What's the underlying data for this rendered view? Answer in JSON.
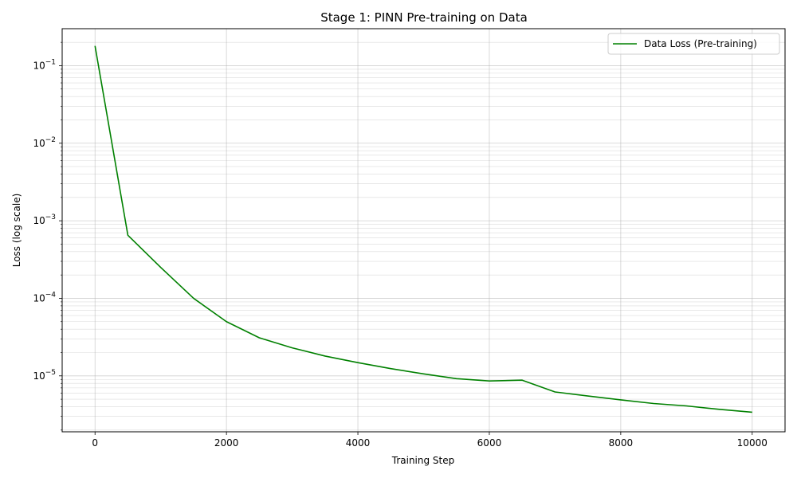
{
  "chart_data": {
    "type": "line",
    "title": "Stage 1: PINN Pre-training on Data",
    "xlabel": "Training Step",
    "ylabel": "Loss (log scale)",
    "yscale": "log",
    "xlim": [
      -500,
      10500
    ],
    "ylim": [
      1.9e-06,
      0.3
    ],
    "grid": "on (major and minor)",
    "legend_position": "top-right",
    "x_ticks": [
      0,
      2000,
      4000,
      6000,
      8000,
      10000
    ],
    "y_ticks": [
      {
        "value": 1e-05,
        "base": "10",
        "exp": "−5"
      },
      {
        "value": 0.0001,
        "base": "10",
        "exp": "−4"
      },
      {
        "value": 0.001,
        "base": "10",
        "exp": "−3"
      },
      {
        "value": 0.01,
        "base": "10",
        "exp": "−2"
      },
      {
        "value": 0.1,
        "base": "10",
        "exp": "−1"
      }
    ],
    "series": [
      {
        "name": "Data Loss (Pre-training)",
        "color": "#008000",
        "x": [
          0,
          500,
          1000,
          1500,
          2000,
          2500,
          3000,
          3500,
          4000,
          4500,
          5000,
          5500,
          6000,
          6500,
          7000,
          7500,
          8000,
          8500,
          9000,
          9500,
          10000
        ],
        "y": [
          0.18,
          0.00065,
          0.00025,
          0.0001,
          5e-05,
          3.1e-05,
          2.3e-05,
          1.8e-05,
          1.48e-05,
          1.24e-05,
          1.06e-05,
          9.2e-06,
          8.6e-06,
          8.8e-06,
          6.2e-06,
          5.5e-06,
          4.9e-06,
          4.4e-06,
          4.1e-06,
          3.7e-06,
          3.4e-06
        ]
      }
    ]
  }
}
